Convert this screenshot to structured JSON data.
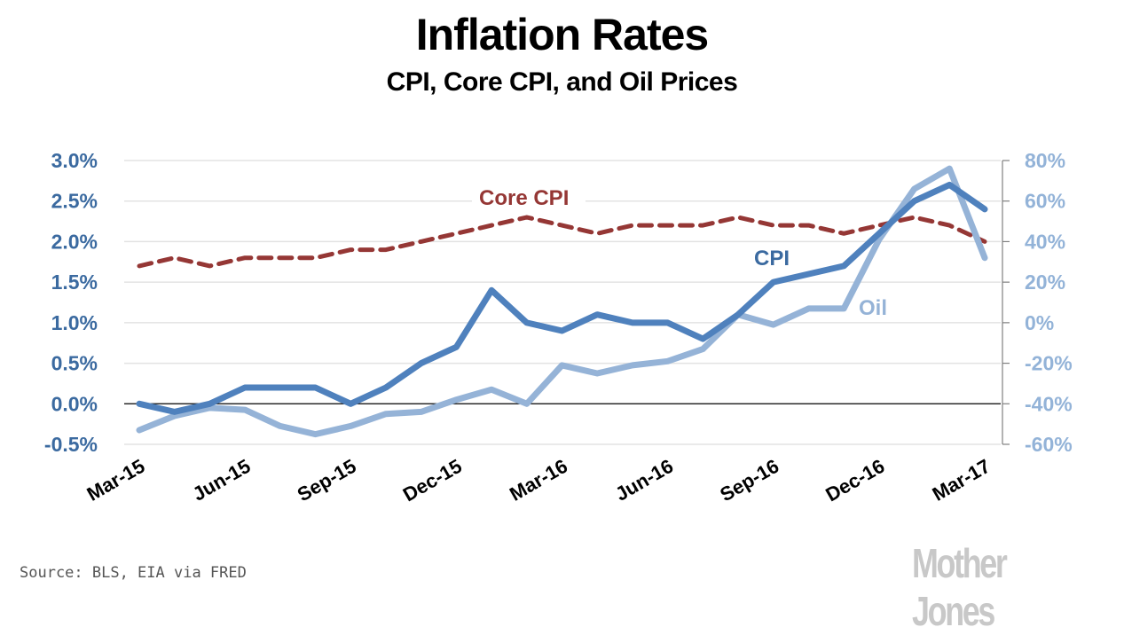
{
  "header": {
    "title": "Inflation Rates",
    "subtitle": "CPI, Core CPI, and Oil Prices"
  },
  "footer": {
    "source": "Source: BLS, EIA via FRED",
    "logo": "Mother Jones"
  },
  "chart_data": {
    "type": "line",
    "title": "Inflation Rates",
    "subtitle": "CPI, Core CPI, and Oil Prices",
    "xlabel": "",
    "ylabel": "",
    "x": [
      "Mar-15",
      "Apr-15",
      "May-15",
      "Jun-15",
      "Jul-15",
      "Aug-15",
      "Sep-15",
      "Oct-15",
      "Nov-15",
      "Dec-15",
      "Jan-16",
      "Feb-16",
      "Mar-16",
      "Apr-16",
      "May-16",
      "Jun-16",
      "Jul-16",
      "Aug-16",
      "Sep-16",
      "Oct-16",
      "Nov-16",
      "Dec-16",
      "Jan-17",
      "Feb-17",
      "Mar-17"
    ],
    "x_tick_labels": [
      "Mar-15",
      "Jun-15",
      "Sep-15",
      "Dec-15",
      "Mar-16",
      "Jun-16",
      "Sep-16",
      "Dec-16",
      "Mar-17"
    ],
    "y_left": {
      "ylim": [
        -0.5,
        3.0
      ],
      "tick_labels": [
        "3.0%",
        "2.5%",
        "2.0%",
        "1.5%",
        "1.0%",
        "0.5%",
        "0.0%",
        "-0.5%"
      ],
      "ticks": [
        3.0,
        2.5,
        2.0,
        1.5,
        1.0,
        0.5,
        0.0,
        -0.5
      ],
      "color": "#3b6aa0"
    },
    "y_right": {
      "ylim": [
        -60,
        80
      ],
      "tick_labels": [
        "80%",
        "60%",
        "40%",
        "20%",
        "0%",
        "-20%",
        "-40%",
        "-60%"
      ],
      "ticks": [
        80,
        60,
        40,
        20,
        0,
        -20,
        -40,
        -60
      ],
      "color": "#93b3d8"
    },
    "grid": true,
    "legend": "inline labels",
    "series": [
      {
        "name": "CPI",
        "label": "CPI",
        "axis": "left",
        "color": "#4f81bd",
        "label_color": "#3b6aa0",
        "style": "solid",
        "values": [
          0.0,
          -0.1,
          0.0,
          0.2,
          0.2,
          0.2,
          0.0,
          0.2,
          0.5,
          0.7,
          1.4,
          1.0,
          0.9,
          1.1,
          1.0,
          1.0,
          0.8,
          1.1,
          1.5,
          1.6,
          1.7,
          2.1,
          2.5,
          2.7,
          2.4
        ]
      },
      {
        "name": "Core CPI",
        "label": "Core CPI",
        "axis": "left",
        "color": "#953735",
        "label_color": "#953735",
        "style": "dashed",
        "values": [
          1.7,
          1.8,
          1.7,
          1.8,
          1.8,
          1.8,
          1.9,
          1.9,
          2.0,
          2.1,
          2.2,
          2.3,
          2.2,
          2.1,
          2.2,
          2.2,
          2.2,
          2.3,
          2.2,
          2.2,
          2.1,
          2.2,
          2.3,
          2.2,
          2.0
        ]
      },
      {
        "name": "Oil",
        "label": "Oil",
        "axis": "right",
        "color": "#95b3d7",
        "label_color": "#95b3d7",
        "style": "solid",
        "values": [
          -53,
          -46,
          -42,
          -43,
          -51,
          -55,
          -51,
          -45,
          -44,
          -38,
          -33,
          -40,
          -21,
          -25,
          -21,
          -19,
          -13,
          4,
          -1,
          7,
          7,
          41,
          66,
          76,
          32
        ]
      }
    ]
  }
}
